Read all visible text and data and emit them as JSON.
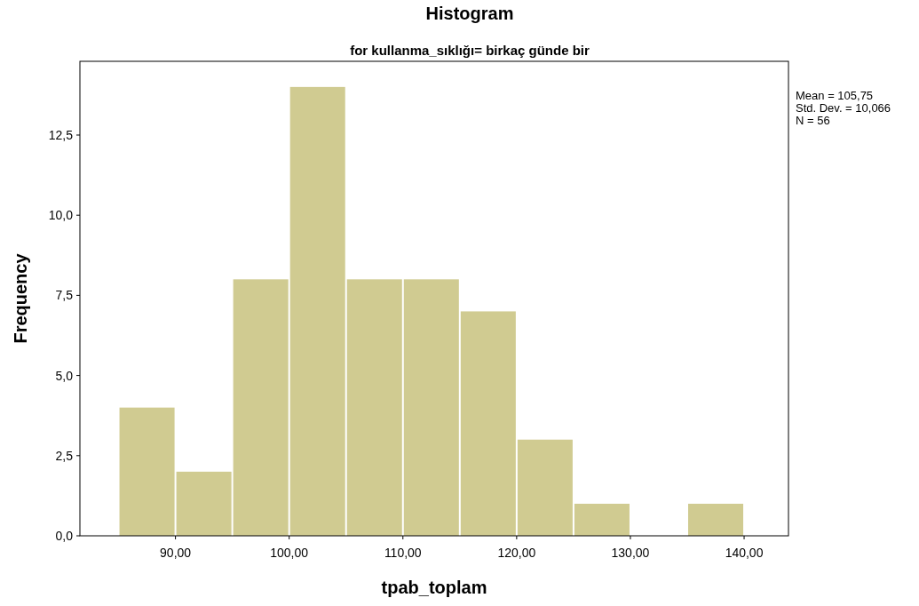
{
  "chart_data": {
    "type": "histogram",
    "title": "Histogram",
    "subtitle": "for kullanma_sıklığı= birkaç günde bir",
    "xlabel": "tpab_toplam",
    "ylabel": "Frequency",
    "bins": [
      85,
      90,
      95,
      100,
      105,
      110,
      115,
      120,
      125,
      130,
      135,
      140
    ],
    "values": [
      4,
      2,
      8,
      14,
      8,
      8,
      7,
      3,
      1,
      0,
      1
    ],
    "color": "#d0cb91",
    "xlim": [
      81.6,
      143.9
    ],
    "xticks": [
      {
        "value": 90,
        "label": "90,00"
      },
      {
        "value": 100,
        "label": "100,00"
      },
      {
        "value": 110,
        "label": "110,00"
      },
      {
        "value": 120,
        "label": "120,00"
      },
      {
        "value": 130,
        "label": "130,00"
      },
      {
        "value": 140,
        "label": "140,00"
      }
    ],
    "ylim": [
      0,
      14.8
    ],
    "yticks": [
      {
        "value": 0,
        "label": "0,0"
      },
      {
        "value": 2.5,
        "label": "2,5"
      },
      {
        "value": 5,
        "label": "5,0"
      },
      {
        "value": 7.5,
        "label": "7,5"
      },
      {
        "value": 10,
        "label": "10,0"
      },
      {
        "value": 12.5,
        "label": "12,5"
      }
    ],
    "annotations": [
      "Mean = 105,75",
      "Std. Dev. = 10,066",
      "N = 56"
    ]
  }
}
